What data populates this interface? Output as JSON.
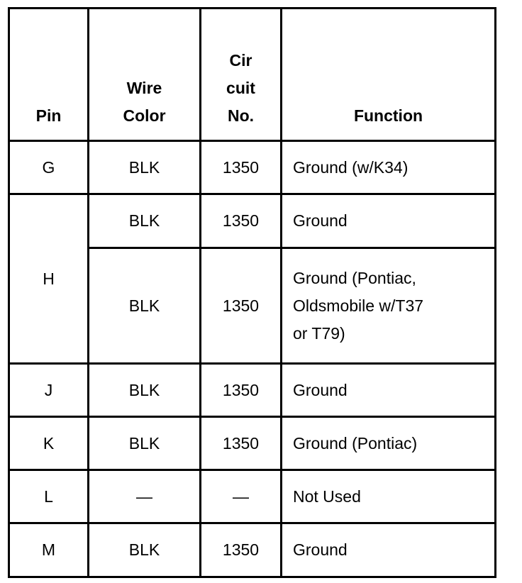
{
  "headers": {
    "pin": "Pin",
    "wire_color_1": "Wire",
    "wire_color_2": "Color",
    "circuit_1": "Cir",
    "circuit_2": "cuit",
    "circuit_3": "No.",
    "function": "Function"
  },
  "rows": [
    {
      "pin": "G",
      "color": "BLK",
      "circuit": "1350",
      "function": "Ground (w/K34)"
    },
    {
      "pin": "H",
      "color": "BLK",
      "circuit": "1350",
      "function": "Ground"
    },
    {
      "pin": "",
      "color": "BLK",
      "circuit": "1350",
      "function_lines": [
        "Ground (Pontiac,",
        "Oldsmobile w/T37",
        "or T79)"
      ]
    },
    {
      "pin": "J",
      "color": "BLK",
      "circuit": "1350",
      "function": "Ground"
    },
    {
      "pin": "K",
      "color": "BLK",
      "circuit": "1350",
      "function": "Ground (Pontiac)"
    },
    {
      "pin": "L",
      "color": "—",
      "circuit": "—",
      "function": "Not Used"
    },
    {
      "pin": "M",
      "color": "BLK",
      "circuit": "1350",
      "function": "Ground"
    }
  ]
}
